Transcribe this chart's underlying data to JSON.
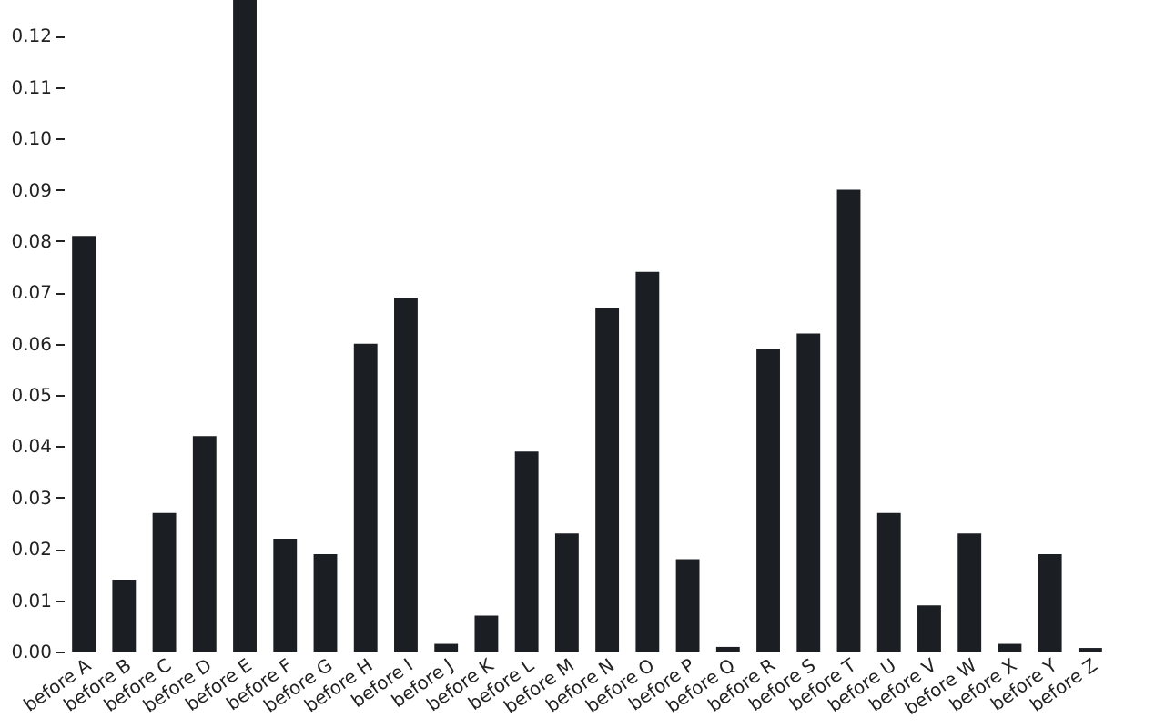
{
  "chart_data": {
    "type": "bar",
    "categories": [
      "before A",
      "before B",
      "before C",
      "before D",
      "before E",
      "before F",
      "before G",
      "before H",
      "before I",
      "before J",
      "before K",
      "before L",
      "before M",
      "before N",
      "before O",
      "before P",
      "before Q",
      "before R",
      "before S",
      "before T",
      "before U",
      "before V",
      "before W",
      "before X",
      "before Y",
      "before Z"
    ],
    "values": [
      0.081,
      0.014,
      0.027,
      0.042,
      0.127,
      0.022,
      0.019,
      0.06,
      0.069,
      0.0015,
      0.007,
      0.039,
      0.023,
      0.067,
      0.074,
      0.018,
      0.0009,
      0.059,
      0.062,
      0.09,
      0.027,
      0.009,
      0.023,
      0.0015,
      0.019,
      0.0007
    ],
    "color": "#1b1e23",
    "ylim": [
      0,
      0.127
    ],
    "yticks": [
      {
        "value": 0,
        "label": "0.00"
      },
      {
        "value": 0.01,
        "label": "0.01"
      },
      {
        "value": 0.02,
        "label": "0.02"
      },
      {
        "value": 0.03,
        "label": "0.03"
      },
      {
        "value": 0.04,
        "label": "0.04"
      },
      {
        "value": 0.05,
        "label": "0.05"
      },
      {
        "value": 0.06,
        "label": "0.06"
      },
      {
        "value": 0.07,
        "label": "0.07"
      },
      {
        "value": 0.08,
        "label": "0.08"
      },
      {
        "value": 0.09,
        "label": "0.09"
      },
      {
        "value": 0.1,
        "label": "0.10"
      },
      {
        "value": 0.11,
        "label": "0.11"
      },
      {
        "value": 0.12,
        "label": "0.12"
      }
    ],
    "grid": false
  }
}
